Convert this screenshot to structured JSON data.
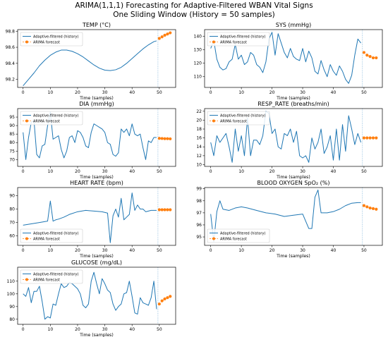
{
  "suptitle": [
    "ARIMA(1,1,1) Forecasting for Adaptive-Filtered WBAN Vital Signs",
    "One Sliding Window (History = 50 samples)"
  ],
  "colors": {
    "history": "#1f77b4",
    "forecast": "#ff7f0e",
    "vline": "#7fb2d8"
  },
  "chart_data": [
    {
      "type": "line",
      "title": "TEMP (°C)",
      "xlabel": "Time (samples)",
      "ylabel": "",
      "xlim": [
        -2,
        56
      ],
      "ylim": [
        98.1,
        98.82
      ],
      "xticks": [
        0,
        10,
        20,
        30,
        40,
        50
      ],
      "yticks": [
        98.2,
        98.4,
        98.6,
        98.8
      ],
      "ytick_labels": [
        "98.2",
        "98.4",
        "98.6",
        "98.8"
      ],
      "legend": "upper-left",
      "forecast_start_line": 49.5,
      "series": [
        {
          "name": "Adaptive-filtered (history)",
          "style": "line",
          "x": [
            0,
            2,
            4,
            6,
            8,
            10,
            12,
            14,
            16,
            18,
            20,
            22,
            24,
            26,
            28,
            30,
            32,
            34,
            36,
            38,
            40,
            42,
            44,
            46,
            48,
            49
          ],
          "values": [
            98.12,
            98.2,
            98.28,
            98.37,
            98.44,
            98.5,
            98.54,
            98.565,
            98.565,
            98.55,
            98.52,
            98.48,
            98.43,
            98.38,
            98.34,
            98.315,
            98.31,
            98.32,
            98.35,
            98.4,
            98.46,
            98.52,
            98.58,
            98.63,
            98.67,
            98.68
          ]
        },
        {
          "name": "ARIMA forecast",
          "style": "markers",
          "x": [
            50,
            51,
            52,
            53,
            54
          ],
          "values": [
            98.71,
            98.73,
            98.75,
            98.765,
            98.78
          ]
        }
      ]
    },
    {
      "type": "line",
      "title": "SYS (mmHg)",
      "xlabel": "Time (samples)",
      "ylabel": "",
      "xlim": [
        -2,
        56
      ],
      "ylim": [
        102,
        145
      ],
      "xticks": [
        0,
        10,
        20,
        30,
        40,
        50
      ],
      "yticks": [
        110,
        120,
        130,
        140
      ],
      "ytick_labels": [
        "110",
        "120",
        "130",
        "140"
      ],
      "legend": "upper-left",
      "forecast_start_line": 49.5,
      "series": [
        {
          "name": "Adaptive-filtered (history)",
          "style": "line",
          "x": [
            0,
            1,
            2,
            3,
            4,
            5,
            6,
            7,
            8,
            9,
            10,
            11,
            12,
            13,
            14,
            15,
            16,
            17,
            18,
            19,
            20,
            21,
            22,
            23,
            24,
            25,
            26,
            27,
            28,
            29,
            30,
            31,
            32,
            33,
            34,
            35,
            36,
            37,
            38,
            39,
            40,
            41,
            42,
            43,
            44,
            45,
            46,
            47,
            48,
            49
          ],
          "values": [
            131,
            137,
            123,
            117,
            115,
            116,
            121,
            123,
            134,
            123,
            126,
            119,
            121,
            128,
            126,
            119,
            117,
            113,
            121,
            138,
            143,
            126,
            142,
            135,
            128,
            124,
            131,
            125,
            123,
            122,
            131,
            121,
            129,
            124,
            114,
            112,
            122,
            115,
            110,
            119,
            114,
            111,
            118,
            114,
            108,
            105,
            111,
            126,
            138,
            135
          ]
        },
        {
          "name": "ARIMA forecast",
          "style": "markers",
          "x": [
            50,
            51,
            52,
            53,
            54
          ],
          "values": [
            128,
            126,
            125,
            124,
            124
          ]
        }
      ]
    },
    {
      "type": "line",
      "title": "DIA (mmHg)",
      "xlabel": "Time (samples)",
      "ylabel": "",
      "xlim": [
        -2,
        56
      ],
      "ylim": [
        66,
        100
      ],
      "xticks": [
        0,
        10,
        20,
        30,
        40,
        50
      ],
      "yticks": [
        70,
        75,
        80,
        85,
        90,
        95
      ],
      "ytick_labels": [
        "70",
        "75",
        "80",
        "85",
        "90",
        "95"
      ],
      "legend": "upper-left",
      "forecast_start_line": 49.5,
      "series": [
        {
          "name": "Adaptive-filtered (history)",
          "style": "line",
          "x": [
            0,
            1,
            2,
            3,
            4,
            5,
            6,
            7,
            8,
            9,
            10,
            11,
            12,
            13,
            14,
            15,
            16,
            17,
            18,
            19,
            20,
            21,
            22,
            23,
            24,
            25,
            26,
            27,
            28,
            29,
            30,
            31,
            32,
            33,
            34,
            35,
            36,
            37,
            38,
            39,
            40,
            41,
            42,
            43,
            44,
            45,
            46,
            47,
            48,
            49
          ],
          "values": [
            86,
            70,
            83,
            92,
            93,
            73,
            71,
            78,
            79,
            90,
            98,
            82,
            83,
            84,
            76,
            71,
            75,
            83,
            84,
            80,
            87,
            86,
            83,
            78,
            77,
            86,
            91,
            90,
            89,
            88,
            86,
            80,
            79,
            73,
            72,
            74,
            88,
            86,
            88,
            84,
            91,
            85,
            84,
            85,
            77,
            70,
            81,
            80,
            83,
            83
          ]
        },
        {
          "name": "ARIMA forecast",
          "style": "markers",
          "x": [
            50,
            51,
            52,
            53,
            54
          ],
          "values": [
            82.5,
            82.4,
            82.3,
            82.3,
            82.2
          ]
        }
      ]
    },
    {
      "type": "line",
      "title": "RESP_RATE (breaths/min)",
      "xlabel": "Time (samples)",
      "ylabel": "",
      "xlim": [
        -2,
        56
      ],
      "ylim": [
        9.6,
        22.6
      ],
      "xticks": [
        0,
        10,
        20,
        30,
        40,
        50
      ],
      "yticks": [
        10,
        12,
        14,
        16,
        18,
        20,
        22
      ],
      "ytick_labels": [
        "10",
        "12",
        "14",
        "16",
        "18",
        "20",
        "22"
      ],
      "legend": "upper-left",
      "forecast_start_line": 49.5,
      "series": [
        {
          "name": "Adaptive-filtered (history)",
          "style": "line",
          "x": [
            0,
            1,
            2,
            3,
            4,
            5,
            6,
            7,
            8,
            9,
            10,
            11,
            12,
            13,
            14,
            15,
            16,
            17,
            18,
            19,
            20,
            21,
            22,
            23,
            24,
            25,
            26,
            27,
            28,
            29,
            30,
            31,
            32,
            33,
            34,
            35,
            36,
            37,
            38,
            39,
            40,
            41,
            42,
            43,
            44,
            45,
            46,
            47,
            48,
            49
          ],
          "values": [
            15,
            12,
            16.5,
            15,
            16,
            17,
            14,
            10.5,
            18,
            13,
            16.5,
            12,
            20.5,
            12,
            15.5,
            15.5,
            14.5,
            16.5,
            22,
            21.5,
            17,
            18,
            14,
            13.5,
            17,
            16.5,
            18,
            15,
            17.5,
            12,
            11.5,
            12,
            10.5,
            16,
            13.5,
            15,
            18,
            12.5,
            14,
            16.5,
            11,
            18,
            11,
            19,
            13,
            21,
            18,
            14.5,
            17,
            15
          ]
        },
        {
          "name": "ARIMA forecast",
          "style": "markers",
          "x": [
            50,
            51,
            52,
            53,
            54
          ],
          "values": [
            16,
            16,
            16,
            16,
            16
          ]
        }
      ]
    },
    {
      "type": "line",
      "title": "HEART RATE (bpm)",
      "xlabel": "Time (samples)",
      "ylabel": "",
      "xlim": [
        -2,
        56
      ],
      "ylim": [
        53,
        96
      ],
      "xticks": [
        0,
        10,
        20,
        30,
        40,
        50
      ],
      "yticks": [
        60,
        70,
        80,
        90
      ],
      "ytick_labels": [
        "60",
        "70",
        "80",
        "90"
      ],
      "legend": "lower-left",
      "forecast_start_line": 49.5,
      "series": [
        {
          "name": "Adaptive-filtered (history)",
          "style": "line",
          "x": [
            0,
            3,
            6,
            9,
            10,
            11,
            12,
            13,
            15,
            17,
            20,
            23,
            26,
            29,
            31,
            32,
            33,
            34,
            35,
            36,
            37,
            38,
            39,
            40,
            41,
            42,
            43,
            44,
            45,
            46,
            47,
            48,
            49
          ],
          "values": [
            68,
            69,
            70,
            71,
            86,
            71,
            72,
            72.5,
            74,
            76,
            78,
            79,
            78.5,
            78,
            77,
            55,
            75,
            80,
            74,
            88,
            72,
            74,
            76,
            92,
            79,
            83,
            80,
            80,
            78,
            78.5,
            79,
            79,
            79
          ]
        },
        {
          "name": "ARIMA forecast",
          "style": "markers",
          "x": [
            50,
            51,
            52,
            53,
            54
          ],
          "values": [
            79.5,
            79.5,
            79.5,
            79.5,
            79.5
          ]
        }
      ]
    },
    {
      "type": "line",
      "title": "BLOOD OXYGEN SpO₂ (%)",
      "xlabel": "Time (samples)",
      "ylabel": "",
      "xlim": [
        -2,
        56
      ],
      "ylim": [
        94.3,
        99.1
      ],
      "xticks": [
        0,
        10,
        20,
        30,
        40,
        50
      ],
      "yticks": [
        95,
        96,
        97,
        98,
        99
      ],
      "ytick_labels": [
        "95",
        "96",
        "97",
        "98",
        "99"
      ],
      "legend": "lower-left",
      "forecast_start_line": 49.5,
      "series": [
        {
          "name": "Adaptive-filtered (history)",
          "style": "line",
          "x": [
            0,
            1,
            2,
            3,
            4,
            6,
            8,
            10,
            12,
            15,
            18,
            21,
            24,
            27,
            30,
            32,
            33,
            34,
            35,
            36,
            38,
            40,
            42,
            44,
            46,
            48,
            49
          ],
          "values": [
            96.9,
            94.6,
            97.1,
            98,
            97.3,
            97.2,
            97.4,
            97.5,
            97.4,
            97.2,
            97.0,
            96.9,
            96.7,
            96.8,
            96.9,
            95.7,
            95.7,
            98.3,
            98.9,
            97.0,
            97.0,
            97.1,
            97.3,
            97.6,
            97.8,
            97.85,
            97.85
          ]
        },
        {
          "name": "ARIMA forecast",
          "style": "markers",
          "x": [
            50,
            51,
            52,
            53,
            54
          ],
          "values": [
            97.6,
            97.5,
            97.4,
            97.35,
            97.3
          ]
        }
      ]
    },
    {
      "type": "line",
      "title": "GLUCOSE (mg/dL)",
      "xlabel": "Time (samples)",
      "ylabel": "",
      "xlim": [
        -2,
        56
      ],
      "ylim": [
        76,
        121
      ],
      "xticks": [
        0,
        10,
        20,
        30,
        40,
        50
      ],
      "yticks": [
        80,
        90,
        100,
        110
      ],
      "ytick_labels": [
        "80",
        "90",
        "100",
        "110"
      ],
      "legend": "upper-left",
      "forecast_start_line": 49.5,
      "series": [
        {
          "name": "Adaptive-filtered (history)",
          "style": "line",
          "x": [
            0,
            1,
            2,
            3,
            4,
            5,
            6,
            7,
            8,
            9,
            10,
            11,
            12,
            13,
            14,
            15,
            16,
            17,
            18,
            19,
            20,
            21,
            22,
            23,
            24,
            25,
            26,
            27,
            28,
            29,
            30,
            31,
            32,
            33,
            34,
            35,
            36,
            37,
            38,
            39,
            40,
            41,
            42,
            43,
            44,
            45,
            46,
            47,
            48,
            49
          ],
          "values": [
            100,
            98,
            105,
            93,
            102,
            102,
            106,
            94,
            80,
            82,
            81,
            92,
            91,
            100,
            108,
            105,
            106,
            109,
            108,
            106,
            104,
            100,
            91,
            89,
            92,
            110,
            117,
            108,
            100,
            112,
            108,
            103,
            101,
            92,
            87,
            90,
            92,
            100,
            101,
            110,
            98,
            85,
            84,
            97,
            93,
            92,
            91,
            97,
            110,
            88
          ]
        },
        {
          "name": "ARIMA forecast",
          "style": "markers",
          "x": [
            50,
            51,
            52,
            53,
            54
          ],
          "values": [
            92,
            94.5,
            96,
            97,
            98
          ]
        }
      ]
    }
  ]
}
